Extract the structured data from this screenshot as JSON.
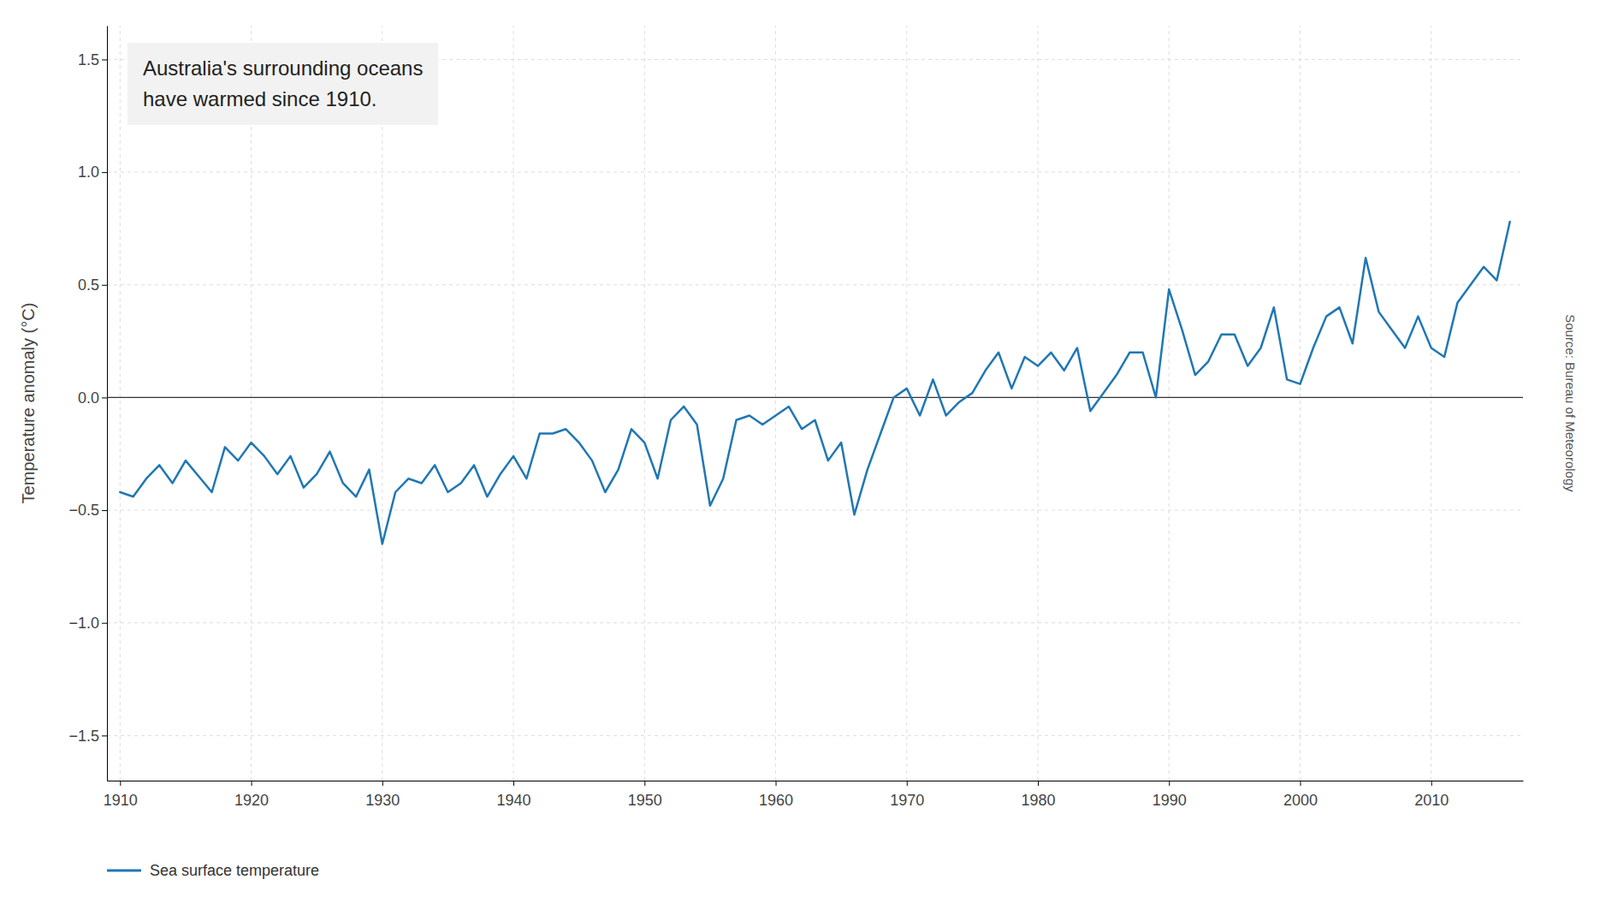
{
  "chart_data": {
    "type": "line",
    "title": "Australia's surrounding oceans\nhave warmed since 1910.",
    "y_label": "Temperature anomaly (°C)",
    "annotations": [
      "Source: Bureau of Meteorology"
    ],
    "legend": "bottom",
    "grid": true,
    "xlim": [
      1909,
      2017
    ],
    "ylim": [
      -1.7,
      1.65
    ],
    "xticks": [
      1910,
      1920,
      1930,
      1940,
      1950,
      1960,
      1970,
      1980,
      1990,
      2000,
      2010
    ],
    "yticks": [
      {
        "value": -1.5,
        "label": "−1.5"
      },
      {
        "value": -1.0,
        "label": "−1.0"
      },
      {
        "value": -0.5,
        "label": "−0.5"
      },
      {
        "value": 0.0,
        "label": "0.0"
      },
      0.5,
      {
        "value": 1.0,
        "label": "1.0"
      },
      1.5
    ],
    "x": [
      1910,
      1911,
      1912,
      1913,
      1914,
      1915,
      1916,
      1917,
      1918,
      1919,
      1920,
      1921,
      1922,
      1923,
      1924,
      1925,
      1926,
      1927,
      1928,
      1929,
      1930,
      1931,
      1932,
      1933,
      1934,
      1935,
      1936,
      1937,
      1938,
      1939,
      1940,
      1941,
      1942,
      1943,
      1944,
      1945,
      1946,
      1947,
      1948,
      1949,
      1950,
      1951,
      1952,
      1953,
      1954,
      1955,
      1956,
      1957,
      1958,
      1959,
      1960,
      1961,
      1962,
      1963,
      1964,
      1965,
      1966,
      1967,
      1968,
      1969,
      1970,
      1971,
      1972,
      1973,
      1974,
      1975,
      1976,
      1977,
      1978,
      1979,
      1980,
      1981,
      1982,
      1983,
      1984,
      1985,
      1986,
      1987,
      1988,
      1989,
      1990,
      1991,
      1992,
      1993,
      1994,
      1995,
      1996,
      1997,
      1998,
      1999,
      2000,
      2001,
      2002,
      2003,
      2004,
      2005,
      2006,
      2007,
      2008,
      2009,
      2010,
      2011,
      2012,
      2013,
      2014,
      2015,
      2016
    ],
    "series": [
      {
        "name": "Sea surface temperature",
        "color": "#2077b4",
        "values": [
          -0.42,
          -0.44,
          -0.36,
          -0.3,
          -0.38,
          -0.28,
          -0.35,
          -0.42,
          -0.22,
          -0.28,
          -0.2,
          -0.26,
          -0.34,
          -0.26,
          -0.4,
          -0.34,
          -0.24,
          -0.38,
          -0.44,
          -0.32,
          -0.65,
          -0.42,
          -0.36,
          -0.38,
          -0.3,
          -0.42,
          -0.38,
          -0.3,
          -0.44,
          -0.34,
          -0.26,
          -0.36,
          -0.16,
          -0.16,
          -0.14,
          -0.2,
          -0.28,
          -0.42,
          -0.32,
          -0.14,
          -0.2,
          -0.36,
          -0.1,
          -0.04,
          -0.12,
          -0.48,
          -0.36,
          -0.1,
          -0.08,
          -0.12,
          -0.08,
          -0.04,
          -0.14,
          -0.1,
          -0.28,
          -0.2,
          -0.52,
          -0.32,
          -0.16,
          0.0,
          0.04,
          -0.08,
          0.08,
          -0.08,
          -0.02,
          0.02,
          0.12,
          0.2,
          0.04,
          0.18,
          0.14,
          0.2,
          0.12,
          0.22,
          -0.06,
          0.02,
          0.1,
          0.2,
          0.2,
          0.0,
          0.48,
          0.3,
          0.1,
          0.16,
          0.28,
          0.28,
          0.14,
          0.22,
          0.4,
          0.08,
          0.06,
          0.22,
          0.36,
          0.4,
          0.24,
          0.62,
          0.38,
          0.3,
          0.22,
          0.36,
          0.22,
          0.18,
          0.42,
          0.5,
          0.58,
          0.52,
          0.78
        ]
      }
    ]
  }
}
